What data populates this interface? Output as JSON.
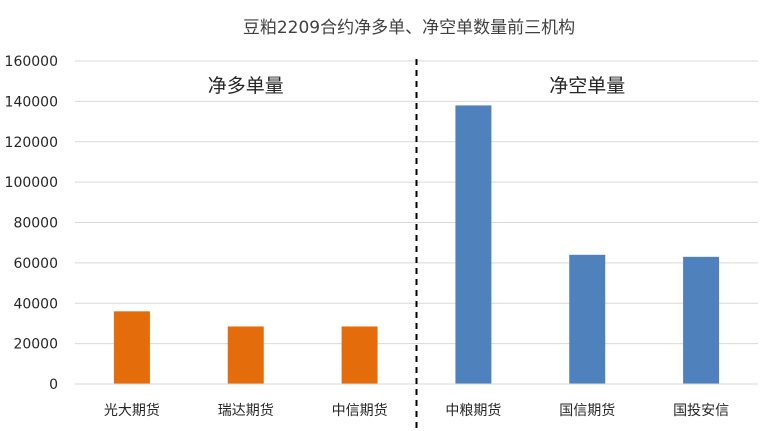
{
  "chart_data": {
    "type": "bar",
    "title": "豆粕2209合约净多单、净空单数量前三机构",
    "xlabel": "",
    "ylabel": "",
    "ylim": [
      0,
      160000
    ],
    "yticks": [
      0,
      20000,
      40000,
      60000,
      80000,
      100000,
      120000,
      140000,
      160000
    ],
    "grid": true,
    "categories": [
      "光大期货",
      "瑞达期货",
      "中信期货",
      "中粮期货",
      "国信期货",
      "国投安信"
    ],
    "values": [
      36000,
      28500,
      28500,
      138000,
      64000,
      63000
    ],
    "bar_colors": [
      "#E46C0A",
      "#E46C0A",
      "#E46C0A",
      "#4F81BD",
      "#4F81BD",
      "#4F81BD"
    ],
    "groups": [
      {
        "label": "净多单量",
        "color": "#E46C0A"
      },
      {
        "label": "净空单量",
        "color": "#4F81BD"
      }
    ],
    "divider": {
      "style": "dashed",
      "between_categories": [
        2,
        3
      ]
    }
  }
}
